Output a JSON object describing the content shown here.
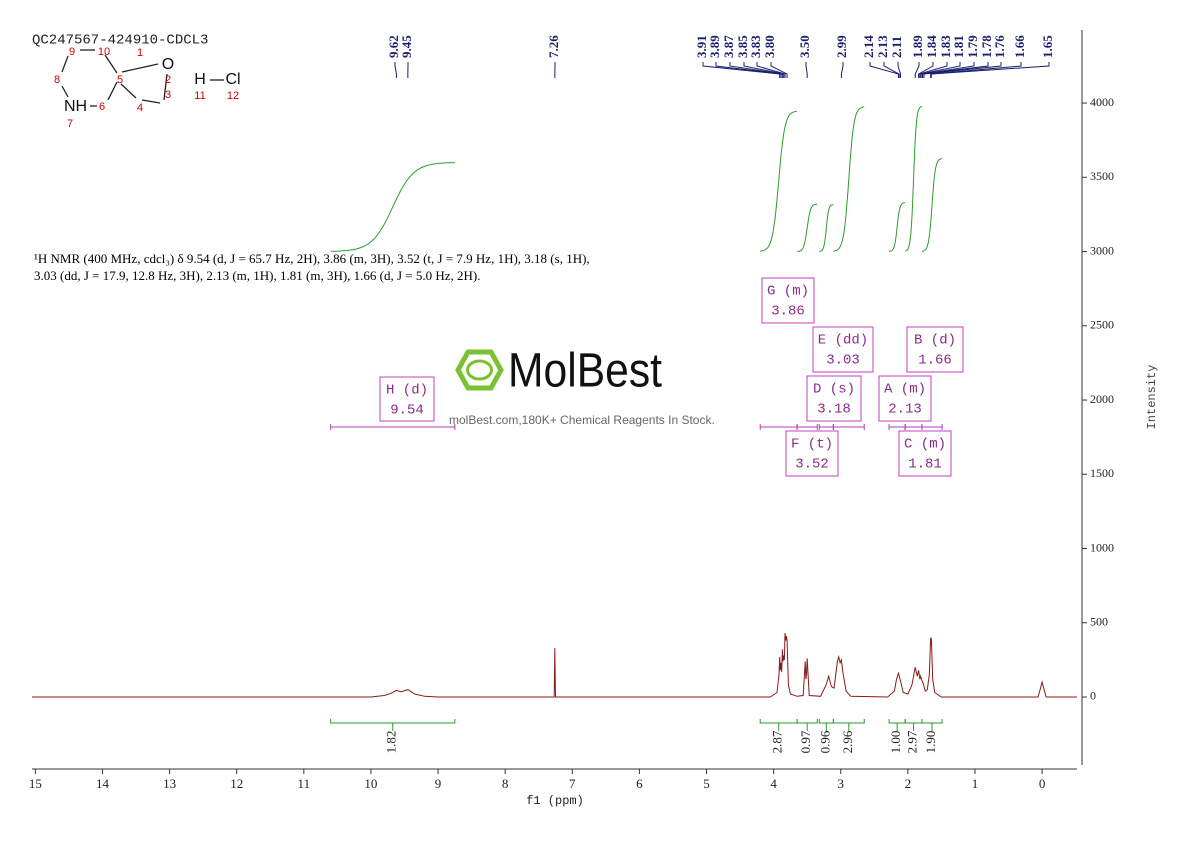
{
  "header": {
    "title": "QC247567-424910-CDCL3"
  },
  "structure": {
    "atoms": [
      "O",
      "NH",
      "H",
      "Cl"
    ],
    "numbers": [
      1,
      2,
      3,
      4,
      5,
      6,
      7,
      8,
      9,
      10,
      11,
      12
    ]
  },
  "description": "¹H NMR (400 MHz, cdcl₃) δ 9.54 (d, J = 65.7 Hz, 2H), 3.86 (m, 3H), 3.52 (t, J = 7.9 Hz, 1H), 3.18 (s, 1H), 3.03 (dd, J = 17.9, 12.8 Hz, 3H), 2.13 (m, 1H), 1.81 (m, 3H), 1.66 (d, J = 5.0 Hz, 2H).",
  "watermark": {
    "brand": "MolBest",
    "tagline": "molBest.com,180K+ Chemical Reagents In Stock."
  },
  "chart_data": {
    "type": "line",
    "xlabel": "f1 (ppm)",
    "ylabel": "Intensity",
    "color": "#8b1a1a",
    "xlim": [
      15.05,
      -0.52
    ],
    "xticks": [
      15,
      14,
      13,
      12,
      11,
      10,
      9,
      8,
      7,
      6,
      5,
      4,
      3,
      2,
      1,
      0
    ],
    "ylim": [
      -458,
      4492
    ],
    "yticks": [
      0,
      500,
      1000,
      1500,
      2000,
      2500,
      3000,
      3500,
      4000
    ],
    "x": [
      15.05,
      10.0,
      9.8,
      9.7,
      9.62,
      9.55,
      9.45,
      9.35,
      9.2,
      9.0,
      7.3,
      7.27,
      7.26,
      7.25,
      7.22,
      4.05,
      3.95,
      3.92,
      3.91,
      3.9,
      3.89,
      3.88,
      3.87,
      3.86,
      3.85,
      3.84,
      3.83,
      3.82,
      3.81,
      3.8,
      3.78,
      3.75,
      3.65,
      3.56,
      3.53,
      3.52,
      3.51,
      3.5,
      3.47,
      3.3,
      3.22,
      3.18,
      3.14,
      3.1,
      3.08,
      3.05,
      3.03,
      3.01,
      2.99,
      2.97,
      2.92,
      2.85,
      2.3,
      2.2,
      2.17,
      2.14,
      2.11,
      2.07,
      2.0,
      1.94,
      1.89,
      1.86,
      1.84,
      1.82,
      1.81,
      1.79,
      1.77,
      1.74,
      1.71,
      1.68,
      1.66,
      1.65,
      1.63,
      1.6,
      1.5,
      0.06,
      0.0,
      -0.06,
      -0.52
    ],
    "values": [
      0,
      0,
      10,
      25,
      45,
      35,
      50,
      20,
      5,
      0,
      0,
      0,
      330,
      0,
      0,
      0,
      30,
      150,
      270,
      180,
      230,
      170,
      320,
      240,
      280,
      250,
      430,
      380,
      410,
      380,
      80,
      20,
      5,
      10,
      240,
      120,
      150,
      260,
      10,
      5,
      80,
      140,
      70,
      60,
      130,
      240,
      270,
      230,
      250,
      170,
      40,
      5,
      0,
      40,
      120,
      160,
      110,
      30,
      20,
      80,
      200,
      140,
      180,
      120,
      140,
      110,
      90,
      40,
      50,
      150,
      400,
      390,
      120,
      30,
      0,
      0,
      100,
      0,
      0
    ],
    "peaks": {
      "values": [
        9.62,
        9.45,
        7.26,
        3.91,
        3.89,
        3.87,
        3.85,
        3.83,
        3.8,
        3.5,
        2.99,
        2.14,
        2.13,
        2.11,
        1.89,
        1.84,
        1.83,
        1.81,
        1.79,
        1.78,
        1.76,
        1.66,
        1.65
      ],
      "value_labels": [
        "9.62",
        "9.45",
        "7.26",
        "3.91",
        "3.89",
        "3.87",
        "3.85",
        "3.83",
        "3.80",
        "3.50",
        "2.99",
        "2.14",
        "2.13",
        "2.11",
        "1.89",
        "1.84",
        "1.83",
        "1.81",
        "1.79",
        "1.78",
        "1.76",
        "1.66",
        "1.65"
      ]
    },
    "integrals": {
      "ranges": [
        [
          10.6,
          8.75
        ],
        [
          4.2,
          3.65
        ],
        [
          3.65,
          3.35
        ],
        [
          3.32,
          3.11
        ],
        [
          3.11,
          2.65
        ],
        [
          2.28,
          2.04
        ],
        [
          2.04,
          1.79
        ],
        [
          1.79,
          1.49
        ]
      ],
      "values": [
        1.82,
        2.87,
        0.97,
        0.96,
        2.96,
        1,
        2.97,
        1.9
      ],
      "value_labels": [
        "1.82",
        "2.87",
        "0.97",
        "0.96",
        "2.96",
        "1.00",
        "2.97",
        "1.90"
      ]
    },
    "multiplets": {
      "labels": [
        "H (d)",
        "G (m)",
        "E (dd)",
        "B (d)",
        "D (s)",
        "A (m)",
        "F (t)",
        "C (m)"
      ],
      "values": [
        9.54,
        3.86,
        3.03,
        1.66,
        3.18,
        2.13,
        3.52,
        1.81
      ]
    }
  }
}
